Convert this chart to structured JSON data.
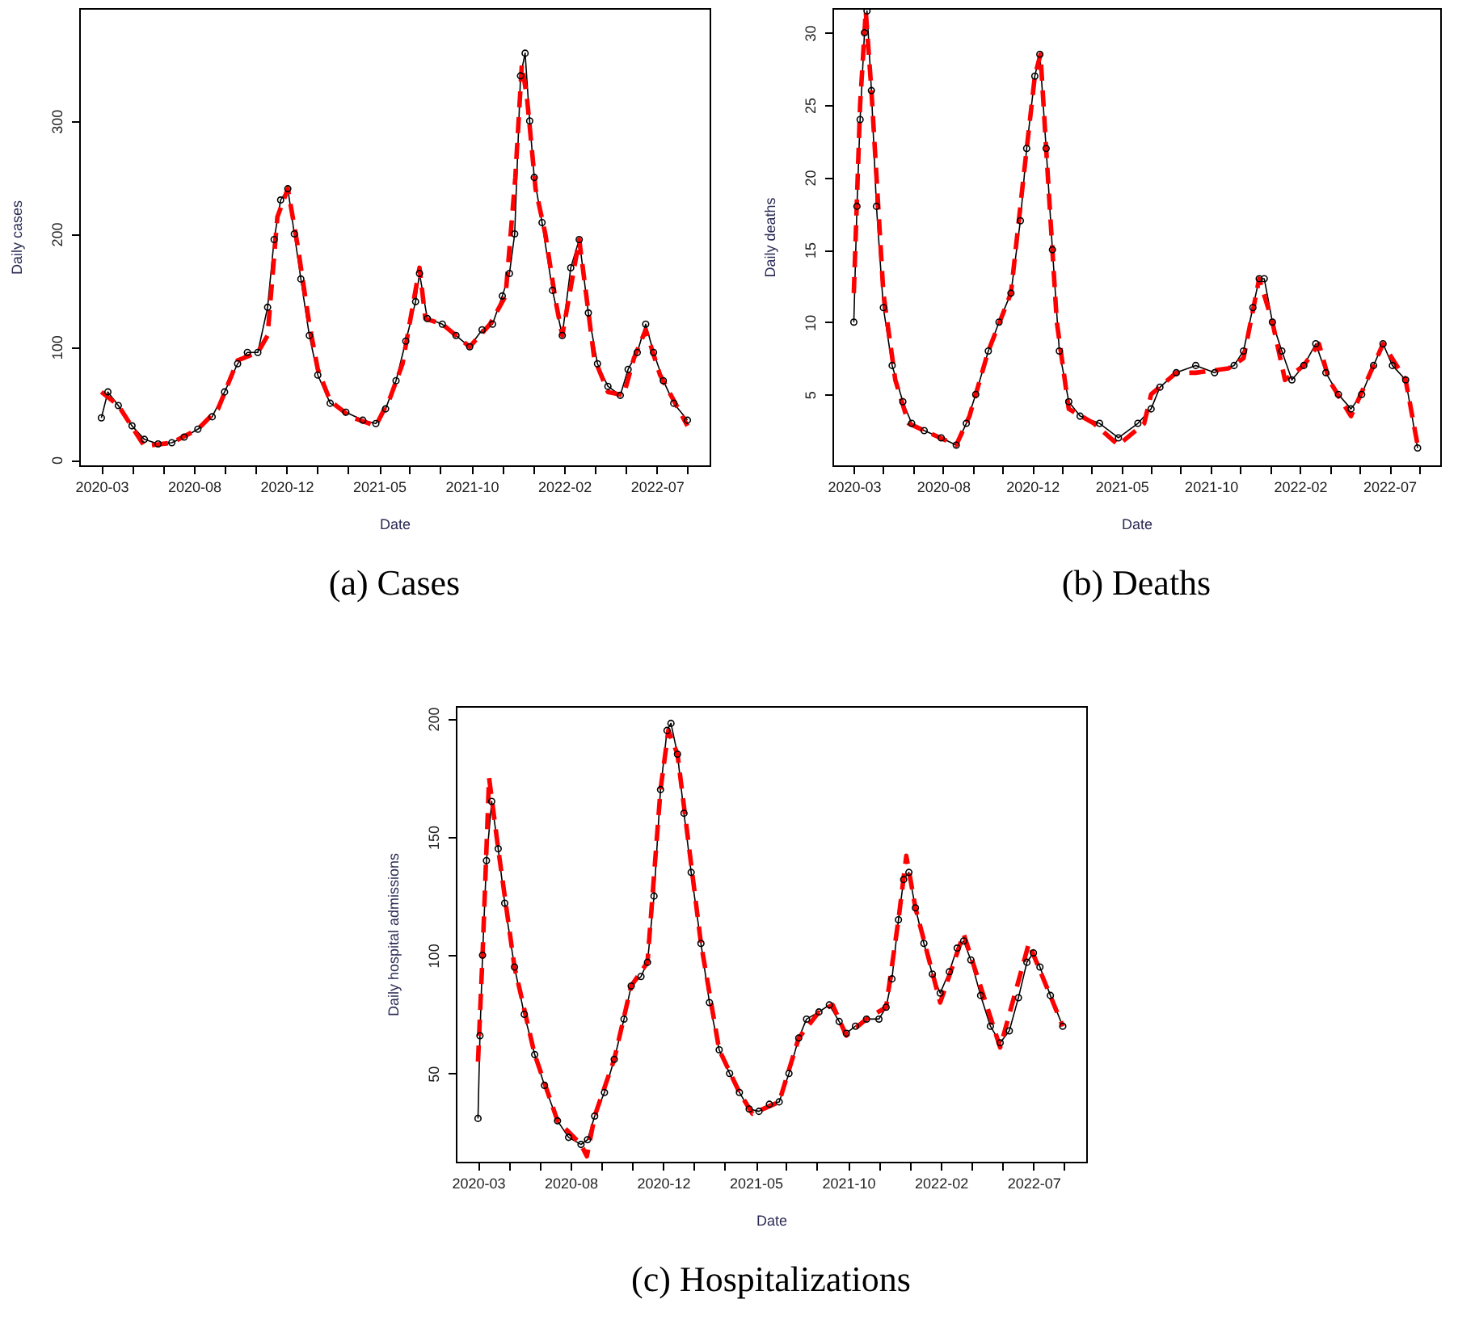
{
  "chart_data": [
    {
      "type": "line",
      "title": "(a) Cases",
      "xlabel": "Date",
      "ylabel": "Daily cases",
      "xlim": [
        "2020-02-10",
        "2022-10-04"
      ],
      "ylim": [
        -5,
        400
      ],
      "yticks": [
        0,
        100,
        200,
        300
      ],
      "xticks": [
        {
          "value": "2020-03-15",
          "label": "2020-03"
        },
        {
          "value": "2020-05-01",
          "label": null
        },
        {
          "value": "2020-06-17",
          "label": null
        },
        {
          "value": "2020-08-04",
          "label": "2020-08"
        },
        {
          "value": "2020-09-20",
          "label": null
        },
        {
          "value": "2020-11-06",
          "label": null
        },
        {
          "value": "2020-12-24",
          "label": "2020-12"
        },
        {
          "value": "2021-02-09",
          "label": null
        },
        {
          "value": "2021-03-28",
          "label": null
        },
        {
          "value": "2021-05-15",
          "label": "2021-05"
        },
        {
          "value": "2021-07-01",
          "label": null
        },
        {
          "value": "2021-08-17",
          "label": null
        },
        {
          "value": "2021-10-04",
          "label": "2021-10"
        },
        {
          "value": "2021-11-20",
          "label": null
        },
        {
          "value": "2022-01-06",
          "label": null
        },
        {
          "value": "2022-02-23",
          "label": "2022-02"
        },
        {
          "value": "2022-04-11",
          "label": null
        },
        {
          "value": "2022-05-28",
          "label": null
        },
        {
          "value": "2022-07-15",
          "label": "2022-07"
        },
        {
          "value": "2022-08-31",
          "label": null
        }
      ],
      "series": [
        {
          "color": "#000000",
          "marker": "circle",
          "line_style": "solid",
          "x": [
            "2020-03-15",
            "2020-03-25",
            "2020-04-10",
            "2020-05-01",
            "2020-05-20",
            "2020-06-10",
            "2020-07-01",
            "2020-07-20",
            "2020-08-10",
            "2020-09-01",
            "2020-09-20",
            "2020-10-10",
            "2020-10-25",
            "2020-11-10",
            "2020-11-25",
            "2020-12-05",
            "2020-12-15",
            "2020-12-26",
            "2021-01-05",
            "2021-01-15",
            "2021-01-28",
            "2021-02-10",
            "2021-03-01",
            "2021-03-25",
            "2021-04-20",
            "2021-05-10",
            "2021-05-25",
            "2021-06-10",
            "2021-06-25",
            "2021-07-10",
            "2021-07-16",
            "2021-07-28",
            "2021-08-20",
            "2021-09-10",
            "2021-10-01",
            "2021-10-20",
            "2021-11-05",
            "2021-11-20",
            "2021-12-01",
            "2021-12-09",
            "2021-12-18",
            "2021-12-25",
            "2022-01-01",
            "2022-01-08",
            "2022-01-20",
            "2022-02-05",
            "2022-02-20",
            "2022-03-05",
            "2022-03-18",
            "2022-04-01",
            "2022-04-15",
            "2022-05-01",
            "2022-05-20",
            "2022-06-01",
            "2022-06-15",
            "2022-06-28",
            "2022-07-10",
            "2022-07-25",
            "2022-08-10",
            "2022-08-31"
          ],
          "values": [
            37,
            60,
            48,
            30,
            18,
            14,
            15,
            20,
            27,
            38,
            60,
            85,
            95,
            95,
            135,
            195,
            230,
            240,
            200,
            160,
            110,
            75,
            50,
            42,
            35,
            32,
            45,
            70,
            105,
            140,
            165,
            125,
            120,
            110,
            100,
            115,
            120,
            145,
            165,
            200,
            340,
            360,
            300,
            250,
            210,
            150,
            110,
            170,
            195,
            130,
            85,
            65,
            57,
            80,
            95,
            120,
            95,
            70,
            50,
            35
          ]
        },
        {
          "color": "#ff0000",
          "marker": "none",
          "line_style": "dashed",
          "x": [
            "2020-03-15",
            "2020-04-10",
            "2020-05-20",
            "2020-07-01",
            "2020-08-10",
            "2020-09-10",
            "2020-10-10",
            "2020-11-10",
            "2020-11-25",
            "2020-12-10",
            "2020-12-26",
            "2021-01-10",
            "2021-01-28",
            "2021-02-10",
            "2021-03-01",
            "2021-04-01",
            "2021-05-10",
            "2021-06-01",
            "2021-06-20",
            "2021-07-16",
            "2021-07-25",
            "2021-08-20",
            "2021-10-01",
            "2021-11-01",
            "2021-11-25",
            "2021-12-10",
            "2021-12-20",
            "2021-12-28",
            "2022-01-10",
            "2022-01-25",
            "2022-02-10",
            "2022-02-20",
            "2022-03-18",
            "2022-04-10",
            "2022-05-01",
            "2022-05-25",
            "2022-06-10",
            "2022-06-28",
            "2022-07-20",
            "2022-08-31"
          ],
          "values": [
            60,
            48,
            12,
            15,
            27,
            45,
            88,
            95,
            110,
            215,
            240,
            190,
            120,
            80,
            52,
            38,
            30,
            55,
            85,
            170,
            125,
            120,
            100,
            120,
            145,
            250,
            350,
            320,
            240,
            200,
            140,
            110,
            195,
            90,
            60,
            57,
            90,
            115,
            75,
            30
          ]
        }
      ]
    },
    {
      "type": "line",
      "title": "(b) Deaths",
      "xlabel": "Date",
      "ylabel": "Daily deaths",
      "xlim": [
        "2020-02-10",
        "2022-10-04"
      ],
      "ylim": [
        0.1,
        31.7
      ],
      "yticks": [
        5,
        10,
        15,
        20,
        25,
        30
      ],
      "xticks": [
        {
          "value": "2020-03-15",
          "label": "2020-03"
        },
        {
          "value": "2020-05-01",
          "label": null
        },
        {
          "value": "2020-06-17",
          "label": null
        },
        {
          "value": "2020-08-04",
          "label": "2020-08"
        },
        {
          "value": "2020-09-20",
          "label": null
        },
        {
          "value": "2020-11-06",
          "label": null
        },
        {
          "value": "2020-12-24",
          "label": "2020-12"
        },
        {
          "value": "2021-02-09",
          "label": null
        },
        {
          "value": "2021-03-28",
          "label": null
        },
        {
          "value": "2021-05-15",
          "label": "2021-05"
        },
        {
          "value": "2021-07-01",
          "label": null
        },
        {
          "value": "2021-08-17",
          "label": null
        },
        {
          "value": "2021-10-04",
          "label": "2021-10"
        },
        {
          "value": "2021-11-20",
          "label": null
        },
        {
          "value": "2022-01-06",
          "label": null
        },
        {
          "value": "2022-02-23",
          "label": "2022-02"
        },
        {
          "value": "2022-04-11",
          "label": null
        },
        {
          "value": "2022-05-28",
          "label": null
        },
        {
          "value": "2022-07-15",
          "label": "2022-07"
        },
        {
          "value": "2022-08-31",
          "label": null
        }
      ],
      "series": [
        {
          "color": "#000000",
          "marker": "circle",
          "line_style": "solid",
          "x": [
            "2020-03-15",
            "2020-03-20",
            "2020-03-25",
            "2020-04-01",
            "2020-04-05",
            "2020-04-12",
            "2020-04-20",
            "2020-05-01",
            "2020-05-15",
            "2020-06-01",
            "2020-06-15",
            "2020-07-05",
            "2020-08-01",
            "2020-08-25",
            "2020-09-10",
            "2020-09-25",
            "2020-10-15",
            "2020-11-01",
            "2020-11-20",
            "2020-12-05",
            "2020-12-15",
            "2020-12-28",
            "2021-01-05",
            "2021-01-15",
            "2021-01-25",
            "2021-02-05",
            "2021-02-20",
            "2021-03-10",
            "2021-04-10",
            "2021-05-10",
            "2021-06-10",
            "2021-07-01",
            "2021-07-15",
            "2021-08-10",
            "2021-09-10",
            "2021-10-10",
            "2021-11-10",
            "2021-11-25",
            "2021-12-10",
            "2021-12-20",
            "2021-12-28",
            "2022-01-10",
            "2022-01-25",
            "2022-02-10",
            "2022-03-01",
            "2022-03-20",
            "2022-04-05",
            "2022-04-25",
            "2022-05-15",
            "2022-06-01",
            "2022-06-20",
            "2022-07-05",
            "2022-07-20",
            "2022-08-10",
            "2022-08-29"
          ],
          "values": [
            10,
            18,
            24,
            30,
            31.5,
            26,
            18,
            11,
            7,
            4.5,
            3,
            2.5,
            2,
            1.5,
            3,
            5,
            8,
            10,
            12,
            17,
            22,
            27,
            28.5,
            22,
            15,
            8,
            4.5,
            3.5,
            3,
            2,
            3,
            4,
            5.5,
            6.5,
            7,
            6.5,
            7,
            8,
            11,
            13,
            13,
            10,
            8,
            6,
            7,
            8.5,
            6.5,
            5,
            4,
            5,
            7,
            8.5,
            7,
            6,
            1.3
          ]
        },
        {
          "color": "#ff0000",
          "marker": "none",
          "line_style": "dashed",
          "x": [
            "2020-03-15",
            "2020-03-25",
            "2020-04-03",
            "2020-04-12",
            "2020-05-01",
            "2020-05-20",
            "2020-06-10",
            "2020-07-05",
            "2020-08-25",
            "2020-09-15",
            "2020-10-15",
            "2020-11-20",
            "2020-12-10",
            "2020-12-28",
            "2021-01-06",
            "2021-01-15",
            "2021-02-01",
            "2021-02-20",
            "2021-04-01",
            "2021-05-10",
            "2021-06-20",
            "2021-07-01",
            "2021-08-10",
            "2021-09-10",
            "2021-11-01",
            "2021-11-25",
            "2021-12-20",
            "2022-01-10",
            "2022-01-30",
            "2022-03-01",
            "2022-03-25",
            "2022-04-10",
            "2022-05-15",
            "2022-06-20",
            "2022-07-05",
            "2022-08-10",
            "2022-08-29"
          ],
          "values": [
            12,
            25,
            31.5,
            26,
            12,
            6,
            3,
            2.5,
            1.5,
            3.5,
            8,
            12,
            20,
            27,
            28.5,
            22,
            10,
            4,
            3,
            1.5,
            3,
            5,
            6.5,
            6.5,
            6.8,
            7.5,
            13,
            10,
            6,
            7,
            8.5,
            6,
            3.5,
            7,
            8.5,
            6,
            1.5
          ]
        }
      ]
    },
    {
      "type": "line",
      "title": "(c) Hospitalizations",
      "xlabel": "Date",
      "ylabel": "Daily hospital admissions",
      "xlim": [
        "2020-02-10",
        "2022-10-04"
      ],
      "ylim": [
        12.7,
        205.3
      ],
      "yticks": [
        50,
        100,
        150,
        200
      ],
      "xticks": [
        {
          "value": "2020-03-15",
          "label": "2020-03"
        },
        {
          "value": "2020-05-01",
          "label": null
        },
        {
          "value": "2020-06-17",
          "label": null
        },
        {
          "value": "2020-08-04",
          "label": "2020-08"
        },
        {
          "value": "2020-09-20",
          "label": null
        },
        {
          "value": "2020-11-06",
          "label": null
        },
        {
          "value": "2020-12-24",
          "label": "2020-12"
        },
        {
          "value": "2021-02-09",
          "label": null
        },
        {
          "value": "2021-03-28",
          "label": null
        },
        {
          "value": "2021-05-15",
          "label": "2021-05"
        },
        {
          "value": "2021-07-01",
          "label": null
        },
        {
          "value": "2021-08-17",
          "label": null
        },
        {
          "value": "2021-10-04",
          "label": "2021-10"
        },
        {
          "value": "2021-11-20",
          "label": null
        },
        {
          "value": "2022-01-06",
          "label": null
        },
        {
          "value": "2022-02-23",
          "label": "2022-02"
        },
        {
          "value": "2022-04-11",
          "label": null
        },
        {
          "value": "2022-05-28",
          "label": null
        },
        {
          "value": "2022-07-15",
          "label": "2022-07"
        },
        {
          "value": "2022-08-31",
          "label": null
        }
      ],
      "series": [
        {
          "color": "#000000",
          "marker": "circle",
          "line_style": "solid",
          "x": [
            "2020-03-15",
            "2020-03-18",
            "2020-03-22",
            "2020-03-28",
            "2020-04-05",
            "2020-04-15",
            "2020-04-25",
            "2020-05-10",
            "2020-05-25",
            "2020-06-10",
            "2020-06-25",
            "2020-07-15",
            "2020-08-01",
            "2020-08-20",
            "2020-08-30",
            "2020-09-10",
            "2020-09-25",
            "2020-10-10",
            "2020-10-25",
            "2020-11-05",
            "2020-11-20",
            "2020-11-30",
            "2020-12-10",
            "2020-12-20",
            "2020-12-30",
            "2021-01-05",
            "2021-01-15",
            "2021-01-25",
            "2021-02-05",
            "2021-02-20",
            "2021-03-05",
            "2021-03-20",
            "2021-04-05",
            "2021-04-20",
            "2021-05-05",
            "2021-05-20",
            "2021-06-05",
            "2021-06-20",
            "2021-07-05",
            "2021-07-20",
            "2021-08-01",
            "2021-08-20",
            "2021-09-05",
            "2021-09-20",
            "2021-10-01",
            "2021-10-15",
            "2021-11-01",
            "2021-11-20",
            "2021-12-01",
            "2021-12-10",
            "2021-12-20",
            "2021-12-28",
            "2022-01-05",
            "2022-01-15",
            "2022-01-28",
            "2022-02-10",
            "2022-02-22",
            "2022-03-08",
            "2022-03-20",
            "2022-03-30",
            "2022-04-10",
            "2022-04-25",
            "2022-05-10",
            "2022-05-25",
            "2022-06-08",
            "2022-06-22",
            "2022-07-05",
            "2022-07-15",
            "2022-07-25",
            "2022-08-10",
            "2022-08-29"
          ],
          "values": [
            31,
            66,
            100,
            140,
            165,
            145,
            122,
            95,
            75,
            58,
            45,
            30,
            23,
            20,
            22,
            32,
            42,
            56,
            73,
            87,
            91,
            97,
            125,
            170,
            195,
            198,
            185,
            160,
            135,
            105,
            80,
            60,
            50,
            42,
            35,
            34,
            37,
            38,
            50,
            65,
            73,
            76,
            79,
            72,
            67,
            70,
            73,
            73,
            78,
            90,
            115,
            132,
            135,
            120,
            105,
            92,
            84,
            93,
            103,
            106,
            98,
            83,
            70,
            63,
            68,
            82,
            97,
            101,
            95,
            83,
            70
          ]
        },
        {
          "color": "#ff0000",
          "marker": "none",
          "line_style": "dashed",
          "x": [
            "2020-03-15",
            "2020-03-22",
            "2020-04-01",
            "2020-04-15",
            "2020-05-10",
            "2020-06-10",
            "2020-07-15",
            "2020-08-20",
            "2020-08-29",
            "2020-09-10",
            "2020-10-10",
            "2020-11-05",
            "2020-11-30",
            "2020-12-20",
            "2021-01-01",
            "2021-01-15",
            "2021-02-20",
            "2021-03-20",
            "2021-04-20",
            "2021-05-10",
            "2021-06-20",
            "2021-07-20",
            "2021-08-20",
            "2021-09-10",
            "2021-10-01",
            "2021-11-01",
            "2021-12-01",
            "2021-12-20",
            "2022-01-01",
            "2022-01-15",
            "2022-02-22",
            "2022-03-30",
            "2022-05-25",
            "2022-07-08",
            "2022-08-29"
          ],
          "values": [
            55,
            100,
            175,
            145,
            95,
            58,
            30,
            20,
            15,
            32,
            56,
            87,
            97,
            170,
            195,
            185,
            105,
            60,
            42,
            33,
            38,
            65,
            76,
            79,
            66,
            73,
            78,
            115,
            142,
            120,
            80,
            109,
            61,
            105,
            70
          ]
        }
      ]
    }
  ]
}
